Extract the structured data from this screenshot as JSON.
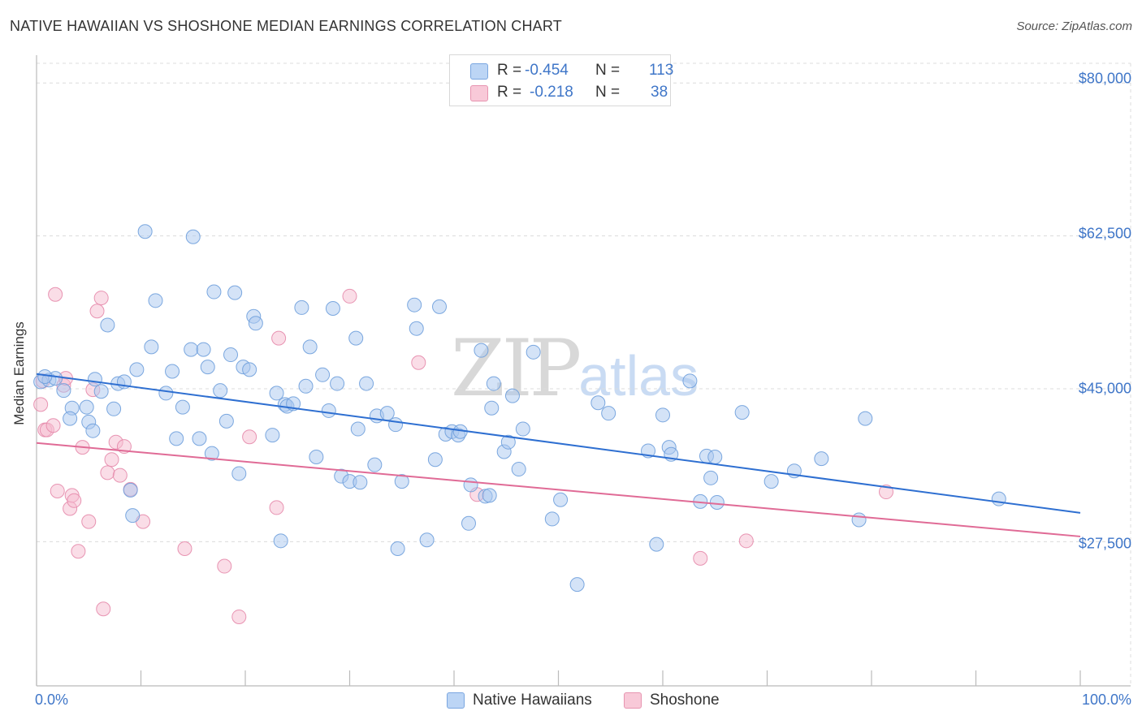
{
  "header": {
    "title": "NATIVE HAWAIIAN VS SHOSHONE MEDIAN EARNINGS CORRELATION CHART",
    "source": "Source: ZipAtlas.com"
  },
  "watermark": {
    "zip": "ZIP",
    "atlas": "atlas"
  },
  "legend": {
    "rows": [
      {
        "r_label": "R =",
        "r_value": "-0.454",
        "n_label": "N =",
        "n_value": "113"
      },
      {
        "r_label": "R =",
        "r_value": "-0.218",
        "n_label": "N =",
        "n_value": "38"
      }
    ],
    "bottom": [
      "Native Hawaiians",
      "Shoshone"
    ]
  },
  "colors": {
    "blue_fill": "#a9c8ef",
    "blue_stroke": "#6e9fdc",
    "blue_line": "#2e6fd1",
    "pink_fill": "#f6bcd0",
    "pink_stroke": "#e68aab",
    "pink_line": "#e06b96",
    "grid": "#dcdcdc",
    "axis_text": "#3f76c8"
  },
  "chart_data": {
    "type": "scatter",
    "title": "NATIVE HAWAIIAN VS SHOSHONE MEDIAN EARNINGS CORRELATION CHART",
    "xlabel": "",
    "ylabel": "Median Earnings",
    "xlim": [
      0,
      100
    ],
    "ylim": [
      11000,
      83000
    ],
    "x_tick_labels": [
      "0.0%",
      "100.0%"
    ],
    "y_ticks": [
      27500,
      45000,
      62500,
      80000
    ],
    "y_tick_labels": [
      "$27,500",
      "$45,000",
      "$62,500",
      "$80,000"
    ],
    "series": [
      {
        "name": "Native Hawaiians",
        "r": -0.454,
        "n": 113,
        "trend": {
          "x": [
            0,
            100
          ],
          "y": [
            46700,
            30800
          ]
        },
        "points": [
          [
            0.4,
            45800
          ],
          [
            1.2,
            46000
          ],
          [
            1.8,
            46200
          ],
          [
            2.6,
            44800
          ],
          [
            3.4,
            42800
          ],
          [
            3.2,
            41600
          ],
          [
            4.8,
            42900
          ],
          [
            5.0,
            41200
          ],
          [
            5.4,
            40200
          ],
          [
            5.6,
            46100
          ],
          [
            6.2,
            44700
          ],
          [
            6.8,
            52300
          ],
          [
            7.4,
            42700
          ],
          [
            7.8,
            45600
          ],
          [
            8.4,
            45800
          ],
          [
            9.0,
            33400
          ],
          [
            9.2,
            30500
          ],
          [
            9.6,
            47200
          ],
          [
            10.4,
            63000
          ],
          [
            11.0,
            49800
          ],
          [
            11.4,
            55100
          ],
          [
            12.4,
            44500
          ],
          [
            13.0,
            47000
          ],
          [
            13.4,
            39300
          ],
          [
            14.0,
            42900
          ],
          [
            14.8,
            49500
          ],
          [
            15.0,
            62400
          ],
          [
            15.6,
            39300
          ],
          [
            16.0,
            49500
          ],
          [
            16.4,
            47500
          ],
          [
            16.8,
            37600
          ],
          [
            17.0,
            56100
          ],
          [
            17.6,
            44800
          ],
          [
            18.2,
            41300
          ],
          [
            18.6,
            48900
          ],
          [
            19.0,
            56000
          ],
          [
            19.4,
            35300
          ],
          [
            19.8,
            47500
          ],
          [
            20.4,
            47200
          ],
          [
            20.8,
            53300
          ],
          [
            21.0,
            52500
          ],
          [
            22.6,
            39700
          ],
          [
            23.0,
            44500
          ],
          [
            23.4,
            27600
          ],
          [
            23.8,
            43200
          ],
          [
            24.0,
            43000
          ],
          [
            24.6,
            43300
          ],
          [
            25.4,
            54300
          ],
          [
            25.8,
            45300
          ],
          [
            26.2,
            49800
          ],
          [
            26.8,
            37200
          ],
          [
            27.4,
            46600
          ],
          [
            28.0,
            42500
          ],
          [
            28.4,
            54200
          ],
          [
            28.8,
            45600
          ],
          [
            29.2,
            35000
          ],
          [
            30.0,
            34400
          ],
          [
            30.6,
            50800
          ],
          [
            30.8,
            40400
          ],
          [
            31.0,
            34300
          ],
          [
            31.6,
            45600
          ],
          [
            32.4,
            36300
          ],
          [
            32.6,
            41900
          ],
          [
            33.6,
            42200
          ],
          [
            34.4,
            40900
          ],
          [
            34.6,
            26700
          ],
          [
            35.0,
            34400
          ],
          [
            36.2,
            54600
          ],
          [
            36.4,
            51900
          ],
          [
            37.4,
            27700
          ],
          [
            38.2,
            36900
          ],
          [
            38.6,
            54400
          ],
          [
            39.2,
            39800
          ],
          [
            39.8,
            40100
          ],
          [
            40.4,
            39700
          ],
          [
            40.6,
            40100
          ],
          [
            41.4,
            29600
          ],
          [
            41.6,
            34000
          ],
          [
            42.6,
            49400
          ],
          [
            43.0,
            32700
          ],
          [
            43.4,
            32800
          ],
          [
            43.6,
            42800
          ],
          [
            43.8,
            45600
          ],
          [
            44.8,
            37800
          ],
          [
            45.2,
            38900
          ],
          [
            45.6,
            44200
          ],
          [
            46.2,
            35800
          ],
          [
            46.6,
            40400
          ],
          [
            47.6,
            49200
          ],
          [
            49.4,
            30100
          ],
          [
            50.2,
            32300
          ],
          [
            51.8,
            22600
          ],
          [
            53.8,
            43400
          ],
          [
            54.8,
            42200
          ],
          [
            58.6,
            37900
          ],
          [
            59.4,
            27200
          ],
          [
            60.0,
            42000
          ],
          [
            60.6,
            38300
          ],
          [
            60.8,
            37500
          ],
          [
            62.6,
            45900
          ],
          [
            63.6,
            32100
          ],
          [
            64.2,
            37300
          ],
          [
            64.6,
            34800
          ],
          [
            65.0,
            37200
          ],
          [
            65.2,
            32000
          ],
          [
            67.6,
            42300
          ],
          [
            70.4,
            34400
          ],
          [
            72.6,
            35600
          ],
          [
            75.2,
            37000
          ],
          [
            78.8,
            30000
          ],
          [
            79.4,
            41600
          ],
          [
            92.2,
            32400
          ],
          [
            0.8,
            46400
          ]
        ]
      },
      {
        "name": "Shoshone",
        "r": -0.218,
        "n": 38,
        "trend": {
          "x": [
            0,
            100
          ],
          "y": [
            38800,
            28100
          ]
        },
        "points": [
          [
            0.4,
            43200
          ],
          [
            0.8,
            40300
          ],
          [
            1.0,
            40300
          ],
          [
            1.6,
            40800
          ],
          [
            1.8,
            55800
          ],
          [
            2.0,
            33300
          ],
          [
            2.6,
            45400
          ],
          [
            2.8,
            46200
          ],
          [
            3.2,
            31300
          ],
          [
            3.4,
            32800
          ],
          [
            3.6,
            32200
          ],
          [
            4.0,
            26400
          ],
          [
            4.4,
            38300
          ],
          [
            5.0,
            29800
          ],
          [
            5.4,
            44900
          ],
          [
            5.8,
            53900
          ],
          [
            6.2,
            55400
          ],
          [
            6.4,
            19800
          ],
          [
            6.8,
            35400
          ],
          [
            7.2,
            36900
          ],
          [
            7.6,
            38900
          ],
          [
            8.0,
            35100
          ],
          [
            8.4,
            38400
          ],
          [
            9.0,
            33500
          ],
          [
            10.2,
            29800
          ],
          [
            14.2,
            26700
          ],
          [
            18.0,
            24700
          ],
          [
            19.4,
            18900
          ],
          [
            20.4,
            39500
          ],
          [
            23.2,
            50800
          ],
          [
            23.0,
            31400
          ],
          [
            30.0,
            55600
          ],
          [
            36.6,
            48000
          ],
          [
            42.2,
            32900
          ],
          [
            63.6,
            25600
          ],
          [
            68.0,
            27600
          ],
          [
            81.4,
            33200
          ],
          [
            0.6,
            45900
          ]
        ]
      }
    ]
  }
}
